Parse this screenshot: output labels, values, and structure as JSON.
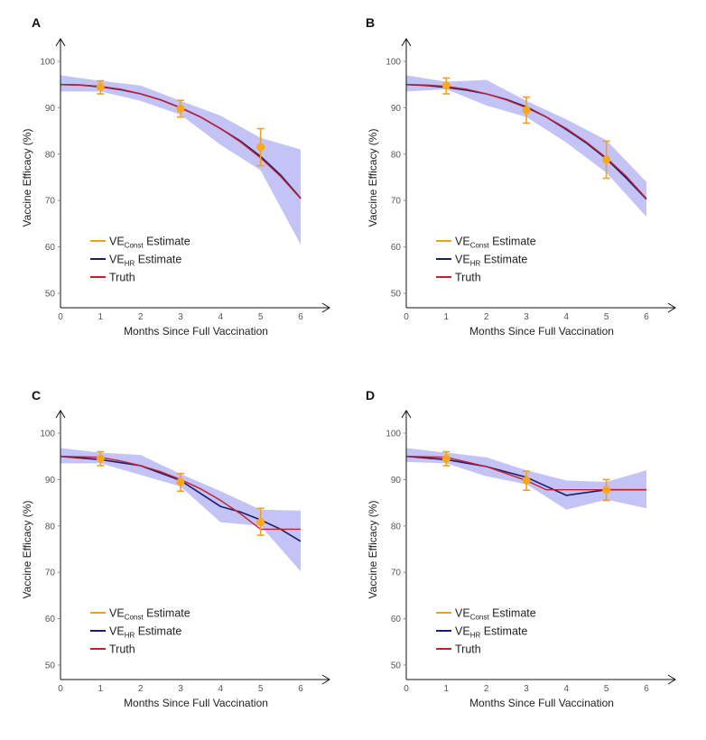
{
  "colors": {
    "band": "#b4b4f4",
    "const": "#f0a020",
    "const_point": "#f7a81b",
    "hr": "#1c1c70",
    "truth": "#c4202c",
    "axis": "#111111"
  },
  "chart_data": [
    {
      "panel": "A",
      "type": "line",
      "xlabel": "Months Since Full Vaccination",
      "ylabel": "Vaccine Efficacy (%)",
      "xlim": [
        0,
        6
      ],
      "ylim": [
        50,
        100
      ],
      "xticks": [
        "0",
        "1",
        "2",
        "3",
        "4",
        "5",
        "6"
      ],
      "yticks": [
        "50",
        "60",
        "70",
        "80",
        "90",
        "100"
      ],
      "legend": [
        {
          "prefix": "VE",
          "sub": "Const",
          "suffix": " Estimate",
          "key": "const"
        },
        {
          "prefix": "VE",
          "sub": "HR",
          "suffix": " Estimate",
          "key": "hr"
        },
        {
          "prefix": "Truth",
          "sub": "",
          "suffix": "",
          "key": "truth"
        }
      ],
      "band": {
        "x": [
          0,
          1,
          2,
          3,
          4,
          5,
          6
        ],
        "upper": [
          97,
          95.8,
          94.8,
          91.5,
          88.3,
          83.5,
          81
        ],
        "lower": [
          93.5,
          93.5,
          91.5,
          88.5,
          82,
          76.5,
          60.5
        ]
      },
      "series": [
        {
          "name": "VE_HR Estimate",
          "key": "hr",
          "x": [
            0,
            0.5,
            1,
            1.5,
            2,
            2.5,
            3,
            3.5,
            4,
            4.5,
            5,
            5.5,
            6
          ],
          "y": [
            95,
            94.9,
            94.5,
            93.9,
            93,
            91.7,
            90,
            88,
            85.5,
            82.8,
            79.5,
            75.5,
            70.5
          ]
        },
        {
          "name": "Truth",
          "key": "truth",
          "x": [
            0,
            0.5,
            1,
            1.5,
            2,
            2.5,
            3,
            3.5,
            4,
            4.5,
            5,
            5.5,
            6
          ],
          "y": [
            95,
            94.9,
            94.6,
            94,
            93,
            91.7,
            90,
            88,
            85.5,
            82.6,
            79.2,
            75.2,
            70.4
          ]
        }
      ],
      "points": {
        "name": "VE_Const Estimate",
        "x": [
          1,
          3,
          5
        ],
        "y": [
          94.5,
          89.8,
          81.5
        ],
        "lower": [
          93,
          88,
          77.5
        ],
        "upper": [
          95.8,
          91.6,
          85.5
        ]
      }
    },
    {
      "panel": "B",
      "type": "line",
      "xlabel": "Months Since Full Vaccination",
      "ylabel": "Vaccine Efficacy (%)",
      "xlim": [
        0,
        6
      ],
      "ylim": [
        50,
        100
      ],
      "xticks": [
        "0",
        "1",
        "2",
        "3",
        "4",
        "5",
        "6"
      ],
      "yticks": [
        "50",
        "60",
        "70",
        "80",
        "90",
        "100"
      ],
      "legend": [
        {
          "prefix": "VE",
          "sub": "Const",
          "suffix": " Estimate",
          "key": "const"
        },
        {
          "prefix": "VE",
          "sub": "HR",
          "suffix": " Estimate",
          "key": "hr"
        },
        {
          "prefix": "Truth",
          "sub": "",
          "suffix": "",
          "key": "truth"
        }
      ],
      "band": {
        "x": [
          0,
          1,
          2,
          3,
          4,
          5,
          6
        ],
        "upper": [
          97,
          95.6,
          96,
          91.5,
          87.5,
          83,
          74
        ],
        "lower": [
          93.5,
          94,
          90.5,
          88,
          82.5,
          76,
          66.5
        ]
      },
      "series": [
        {
          "name": "VE_HR Estimate",
          "key": "hr",
          "x": [
            0,
            0.5,
            1,
            1.5,
            2,
            2.5,
            3,
            3.5,
            4,
            4.5,
            5,
            5.5,
            6
          ],
          "y": [
            95,
            94.8,
            94.4,
            93.8,
            93,
            91.8,
            90.2,
            88,
            85.3,
            82.4,
            79,
            74.8,
            70.3
          ]
        },
        {
          "name": "Truth",
          "key": "truth",
          "x": [
            0,
            0.5,
            1,
            1.5,
            2,
            2.5,
            3,
            3.5,
            4,
            4.5,
            5,
            5.5,
            6
          ],
          "y": [
            95,
            94.9,
            94.6,
            94,
            93,
            91.7,
            90,
            88,
            85.5,
            82.6,
            79.2,
            75.2,
            70.4
          ]
        }
      ],
      "points": {
        "name": "VE_Const Estimate",
        "x": [
          1,
          3,
          5
        ],
        "y": [
          94.8,
          89.5,
          78.8
        ],
        "lower": [
          93,
          86.7,
          74.8
        ],
        "upper": [
          96.4,
          92.3,
          82.8
        ]
      }
    },
    {
      "panel": "C",
      "type": "line",
      "xlabel": "Months Since Full Vaccination",
      "ylabel": "Vaccine Efficacy (%)",
      "xlim": [
        0,
        6
      ],
      "ylim": [
        50,
        100
      ],
      "xticks": [
        "0",
        "1",
        "2",
        "3",
        "4",
        "5",
        "6"
      ],
      "yticks": [
        "50",
        "60",
        "70",
        "80",
        "90",
        "100"
      ],
      "legend": [
        {
          "prefix": "VE",
          "sub": "Const",
          "suffix": " Estimate",
          "key": "const"
        },
        {
          "prefix": "VE",
          "sub": "HR",
          "suffix": " Estimate",
          "key": "hr"
        },
        {
          "prefix": "Truth",
          "sub": "",
          "suffix": "",
          "key": "truth"
        }
      ],
      "band": {
        "x": [
          0,
          1,
          2,
          3,
          4,
          5,
          6
        ],
        "upper": [
          96.8,
          95.8,
          95.3,
          91.2,
          87.5,
          83.5,
          83.3
        ],
        "lower": [
          93.5,
          93.5,
          91,
          88.5,
          80.8,
          80,
          70.2
        ]
      },
      "series": [
        {
          "name": "VE_HR Estimate",
          "key": "hr",
          "x": [
            0,
            1,
            2,
            3,
            4,
            4.5,
            5,
            5.5,
            6
          ],
          "y": [
            95,
            94.3,
            93,
            89.8,
            84.2,
            83,
            81.3,
            79.3,
            76.7
          ]
        },
        {
          "name": "Truth",
          "key": "truth",
          "x": [
            0,
            0.5,
            1,
            1.5,
            2,
            2.5,
            3,
            3.5,
            4,
            4.5,
            5,
            6
          ],
          "y": [
            95,
            94.9,
            94.8,
            94,
            93,
            91.7,
            90,
            88,
            85.5,
            82.6,
            79.3,
            79.3
          ]
        }
      ],
      "points": {
        "name": "VE_Const Estimate",
        "x": [
          1,
          3,
          5
        ],
        "y": [
          94.5,
          89.5,
          80.8
        ],
        "lower": [
          93,
          87.5,
          78
        ],
        "upper": [
          96,
          91.3,
          83.8
        ]
      }
    },
    {
      "panel": "D",
      "type": "line",
      "xlabel": "Months Since Full Vaccination",
      "ylabel": "Vaccine Efficacy (%)",
      "xlim": [
        0,
        6
      ],
      "ylim": [
        50,
        100
      ],
      "xticks": [
        "0",
        "1",
        "2",
        "3",
        "4",
        "5",
        "6"
      ],
      "yticks": [
        "50",
        "60",
        "70",
        "80",
        "90",
        "100"
      ],
      "legend": [
        {
          "prefix": "VE",
          "sub": "Const",
          "suffix": " Estimate",
          "key": "const"
        },
        {
          "prefix": "VE",
          "sub": "HR",
          "suffix": " Estimate",
          "key": "hr"
        },
        {
          "prefix": "Truth",
          "sub": "",
          "suffix": "",
          "key": "truth"
        }
      ],
      "band": {
        "x": [
          0,
          1,
          2,
          3,
          4,
          5,
          6
        ],
        "upper": [
          96.8,
          95.8,
          94.8,
          92,
          89.8,
          89.5,
          92
        ],
        "lower": [
          93.8,
          93.5,
          90.7,
          89,
          83.5,
          85.7,
          83.8
        ]
      },
      "series": [
        {
          "name": "VE_HR Estimate",
          "key": "hr",
          "x": [
            0,
            1,
            2,
            3,
            4,
            5,
            6
          ],
          "y": [
            95,
            94.3,
            92.8,
            90.5,
            86.6,
            87.8,
            87.8
          ]
        },
        {
          "name": "Truth",
          "key": "truth",
          "x": [
            0,
            1,
            2,
            3,
            3.5,
            4,
            5,
            6
          ],
          "y": [
            95,
            94.8,
            92.8,
            89.8,
            87.8,
            87.8,
            87.8,
            87.8
          ]
        }
      ],
      "points": {
        "name": "VE_Const Estimate",
        "x": [
          1,
          3,
          5
        ],
        "y": [
          94.5,
          89.8,
          87.8
        ],
        "lower": [
          93,
          87.7,
          85.5
        ],
        "upper": [
          96,
          91.8,
          90
        ]
      }
    }
  ]
}
